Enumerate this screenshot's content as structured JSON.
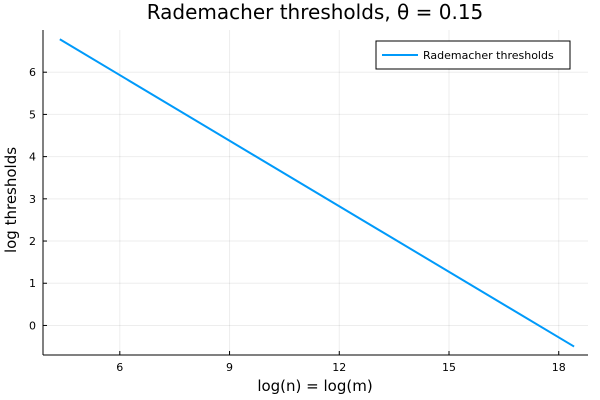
{
  "chart_data": {
    "type": "line",
    "title": "Rademacher thresholds, θ = 0.15",
    "xlabel": "log(n) = log(m)",
    "ylabel": "log thresholds",
    "xlim": [
      3.9,
      18.8
    ],
    "ylim": [
      -0.7,
      7.0
    ],
    "xticks": [
      6,
      9,
      12,
      15,
      18
    ],
    "yticks": [
      0,
      1,
      2,
      3,
      4,
      5,
      6
    ],
    "grid": true,
    "legend_position": "top-right",
    "series": [
      {
        "name": "Rademacher thresholds",
        "color": "#009AFA",
        "x": [
          4.36,
          18.42
        ],
        "y": [
          6.78,
          -0.5
        ]
      }
    ]
  }
}
